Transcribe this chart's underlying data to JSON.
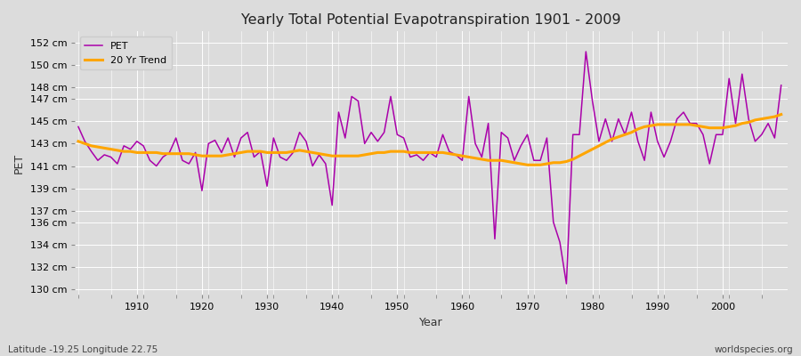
{
  "title": "Yearly Total Potential Evapotranspiration 1901 - 2009",
  "xlabel": "Year",
  "ylabel": "PET",
  "subtitle": "Latitude -19.25 Longitude 22.75",
  "watermark": "worldspecies.org",
  "pet_color": "#AA00AA",
  "trend_color": "#FFA500",
  "background_color": "#DCDCDC",
  "grid_color": "#FFFFFF",
  "ylim": [
    129.5,
    153
  ],
  "xlim": [
    1900.5,
    2010
  ],
  "years": [
    1901,
    1902,
    1903,
    1904,
    1905,
    1906,
    1907,
    1908,
    1909,
    1910,
    1911,
    1912,
    1913,
    1914,
    1915,
    1916,
    1917,
    1918,
    1919,
    1920,
    1921,
    1922,
    1923,
    1924,
    1925,
    1926,
    1927,
    1928,
    1929,
    1930,
    1931,
    1932,
    1933,
    1934,
    1935,
    1936,
    1937,
    1938,
    1939,
    1940,
    1941,
    1942,
    1943,
    1944,
    1945,
    1946,
    1947,
    1948,
    1949,
    1950,
    1951,
    1952,
    1953,
    1954,
    1955,
    1956,
    1957,
    1958,
    1959,
    1960,
    1961,
    1962,
    1963,
    1964,
    1965,
    1966,
    1967,
    1968,
    1969,
    1970,
    1971,
    1972,
    1973,
    1974,
    1975,
    1976,
    1977,
    1978,
    1979,
    1980,
    1981,
    1982,
    1983,
    1984,
    1985,
    1986,
    1987,
    1988,
    1989,
    1990,
    1991,
    1992,
    1993,
    1994,
    1995,
    1996,
    1997,
    1998,
    1999,
    2000,
    2001,
    2002,
    2003,
    2004,
    2005,
    2006,
    2007,
    2008,
    2009
  ],
  "pet": [
    144.5,
    143.2,
    142.3,
    141.5,
    142.0,
    141.8,
    141.2,
    142.8,
    142.5,
    143.2,
    142.8,
    141.5,
    141.0,
    141.8,
    142.2,
    143.5,
    141.5,
    141.2,
    142.2,
    138.8,
    143.0,
    143.3,
    142.2,
    143.5,
    141.8,
    143.5,
    144.0,
    141.8,
    142.3,
    139.2,
    143.5,
    141.8,
    141.5,
    142.2,
    144.0,
    143.2,
    141.0,
    142.0,
    141.2,
    137.5,
    145.8,
    143.5,
    147.2,
    146.8,
    143.0,
    144.0,
    143.2,
    144.0,
    147.2,
    143.8,
    143.5,
    141.8,
    142.0,
    141.5,
    142.2,
    141.8,
    143.8,
    142.3,
    142.0,
    141.5,
    147.2,
    143.0,
    141.8,
    144.8,
    134.5,
    144.0,
    143.5,
    141.5,
    142.8,
    143.8,
    141.5,
    141.5,
    143.5,
    136.0,
    134.2,
    130.5,
    143.8,
    143.8,
    151.2,
    146.8,
    143.2,
    145.2,
    143.2,
    145.2,
    143.8,
    145.8,
    143.2,
    141.5,
    145.8,
    143.2,
    141.8,
    143.2,
    145.2,
    145.8,
    144.8,
    144.8,
    143.8,
    141.2,
    143.8,
    143.8,
    148.8,
    144.8,
    149.2,
    145.2,
    143.2,
    143.8,
    144.8,
    143.5,
    148.2
  ],
  "trend": [
    143.2,
    143.0,
    142.8,
    142.7,
    142.6,
    142.5,
    142.4,
    142.3,
    142.3,
    142.2,
    142.2,
    142.2,
    142.2,
    142.1,
    142.1,
    142.1,
    142.1,
    142.1,
    142.0,
    141.9,
    141.9,
    141.9,
    141.9,
    142.0,
    142.1,
    142.2,
    142.3,
    142.3,
    142.3,
    142.2,
    142.2,
    142.2,
    142.2,
    142.3,
    142.4,
    142.3,
    142.2,
    142.1,
    142.0,
    141.9,
    141.9,
    141.9,
    141.9,
    141.9,
    142.0,
    142.1,
    142.2,
    142.2,
    142.3,
    142.3,
    142.3,
    142.2,
    142.2,
    142.2,
    142.2,
    142.2,
    142.2,
    142.1,
    142.0,
    141.9,
    141.8,
    141.7,
    141.6,
    141.5,
    141.5,
    141.5,
    141.4,
    141.3,
    141.2,
    141.1,
    141.1,
    141.1,
    141.2,
    141.3,
    141.3,
    141.4,
    141.6,
    141.9,
    142.2,
    142.5,
    142.8,
    143.1,
    143.4,
    143.6,
    143.8,
    144.0,
    144.3,
    144.5,
    144.6,
    144.7,
    144.7,
    144.7,
    144.7,
    144.7,
    144.7,
    144.6,
    144.5,
    144.4,
    144.4,
    144.4,
    144.5,
    144.6,
    144.8,
    144.9,
    145.1,
    145.2,
    145.3,
    145.4,
    145.6
  ]
}
